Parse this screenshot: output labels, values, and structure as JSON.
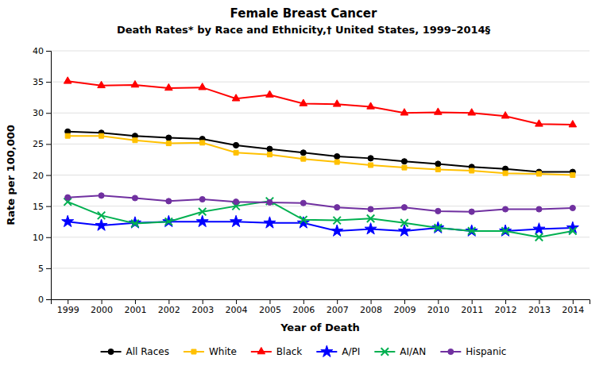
{
  "chart_data": {
    "type": "line",
    "title": "Female Breast Cancer",
    "subtitle": "Death Rates* by Race and Ethnicity,† United States, 1999–2014§",
    "x_label": "Year of Death",
    "y_label": "Rate per 100,000",
    "x": [
      1999,
      2000,
      2001,
      2002,
      2003,
      2004,
      2005,
      2006,
      2007,
      2008,
      2009,
      2010,
      2011,
      2012,
      2013,
      2014
    ],
    "series": [
      {
        "name": "All Races",
        "color": "#000000",
        "marker": "circle",
        "values": [
          27.0,
          26.8,
          26.3,
          26.0,
          25.8,
          24.8,
          24.2,
          23.6,
          23.0,
          22.7,
          22.2,
          21.8,
          21.3,
          21.0,
          20.5,
          20.5
        ]
      },
      {
        "name": "White",
        "color": "#FFC000",
        "marker": "square",
        "values": [
          26.3,
          26.3,
          25.6,
          25.1,
          25.2,
          23.6,
          23.3,
          22.6,
          22.1,
          21.6,
          21.2,
          20.9,
          20.7,
          20.3,
          20.2,
          20.0
        ]
      },
      {
        "name": "Black",
        "color": "#FF0000",
        "marker": "triangle",
        "values": [
          35.1,
          34.4,
          34.5,
          34.0,
          34.1,
          32.3,
          32.9,
          31.5,
          31.4,
          31.0,
          30.0,
          30.1,
          30.0,
          29.5,
          28.2,
          28.1
        ]
      },
      {
        "name": "A/PI",
        "color": "#0000FF",
        "marker": "star",
        "values": [
          12.5,
          11.9,
          12.3,
          12.5,
          12.5,
          12.5,
          12.3,
          12.3,
          11.0,
          11.3,
          11.0,
          11.5,
          11.0,
          11.0,
          11.3,
          11.5
        ]
      },
      {
        "name": "AI/AN",
        "color": "#00B050",
        "marker": "x",
        "values": [
          15.7,
          13.5,
          12.2,
          12.5,
          14.1,
          15.0,
          15.8,
          12.8,
          12.7,
          13.0,
          12.3,
          11.5,
          11.0,
          11.0,
          10.0,
          11.0
        ]
      },
      {
        "name": "Hispanic",
        "color": "#7030A0",
        "marker": "circle",
        "values": [
          16.4,
          16.7,
          16.3,
          15.8,
          16.1,
          15.7,
          15.6,
          15.5,
          14.8,
          14.5,
          14.8,
          14.2,
          14.1,
          14.5,
          14.5,
          14.7
        ]
      }
    ],
    "xlim": [
      1998.5,
      2014.5
    ],
    "xticks": [
      1999,
      2000,
      2001,
      2002,
      2003,
      2004,
      2005,
      2006,
      2007,
      2008,
      2009,
      2010,
      2011,
      2012,
      2013,
      2014
    ],
    "ylim": [
      0,
      40
    ],
    "yticks": [
      0,
      5,
      10,
      15,
      20,
      25,
      30,
      35,
      40
    ],
    "grid": true,
    "legend": "bottom"
  }
}
